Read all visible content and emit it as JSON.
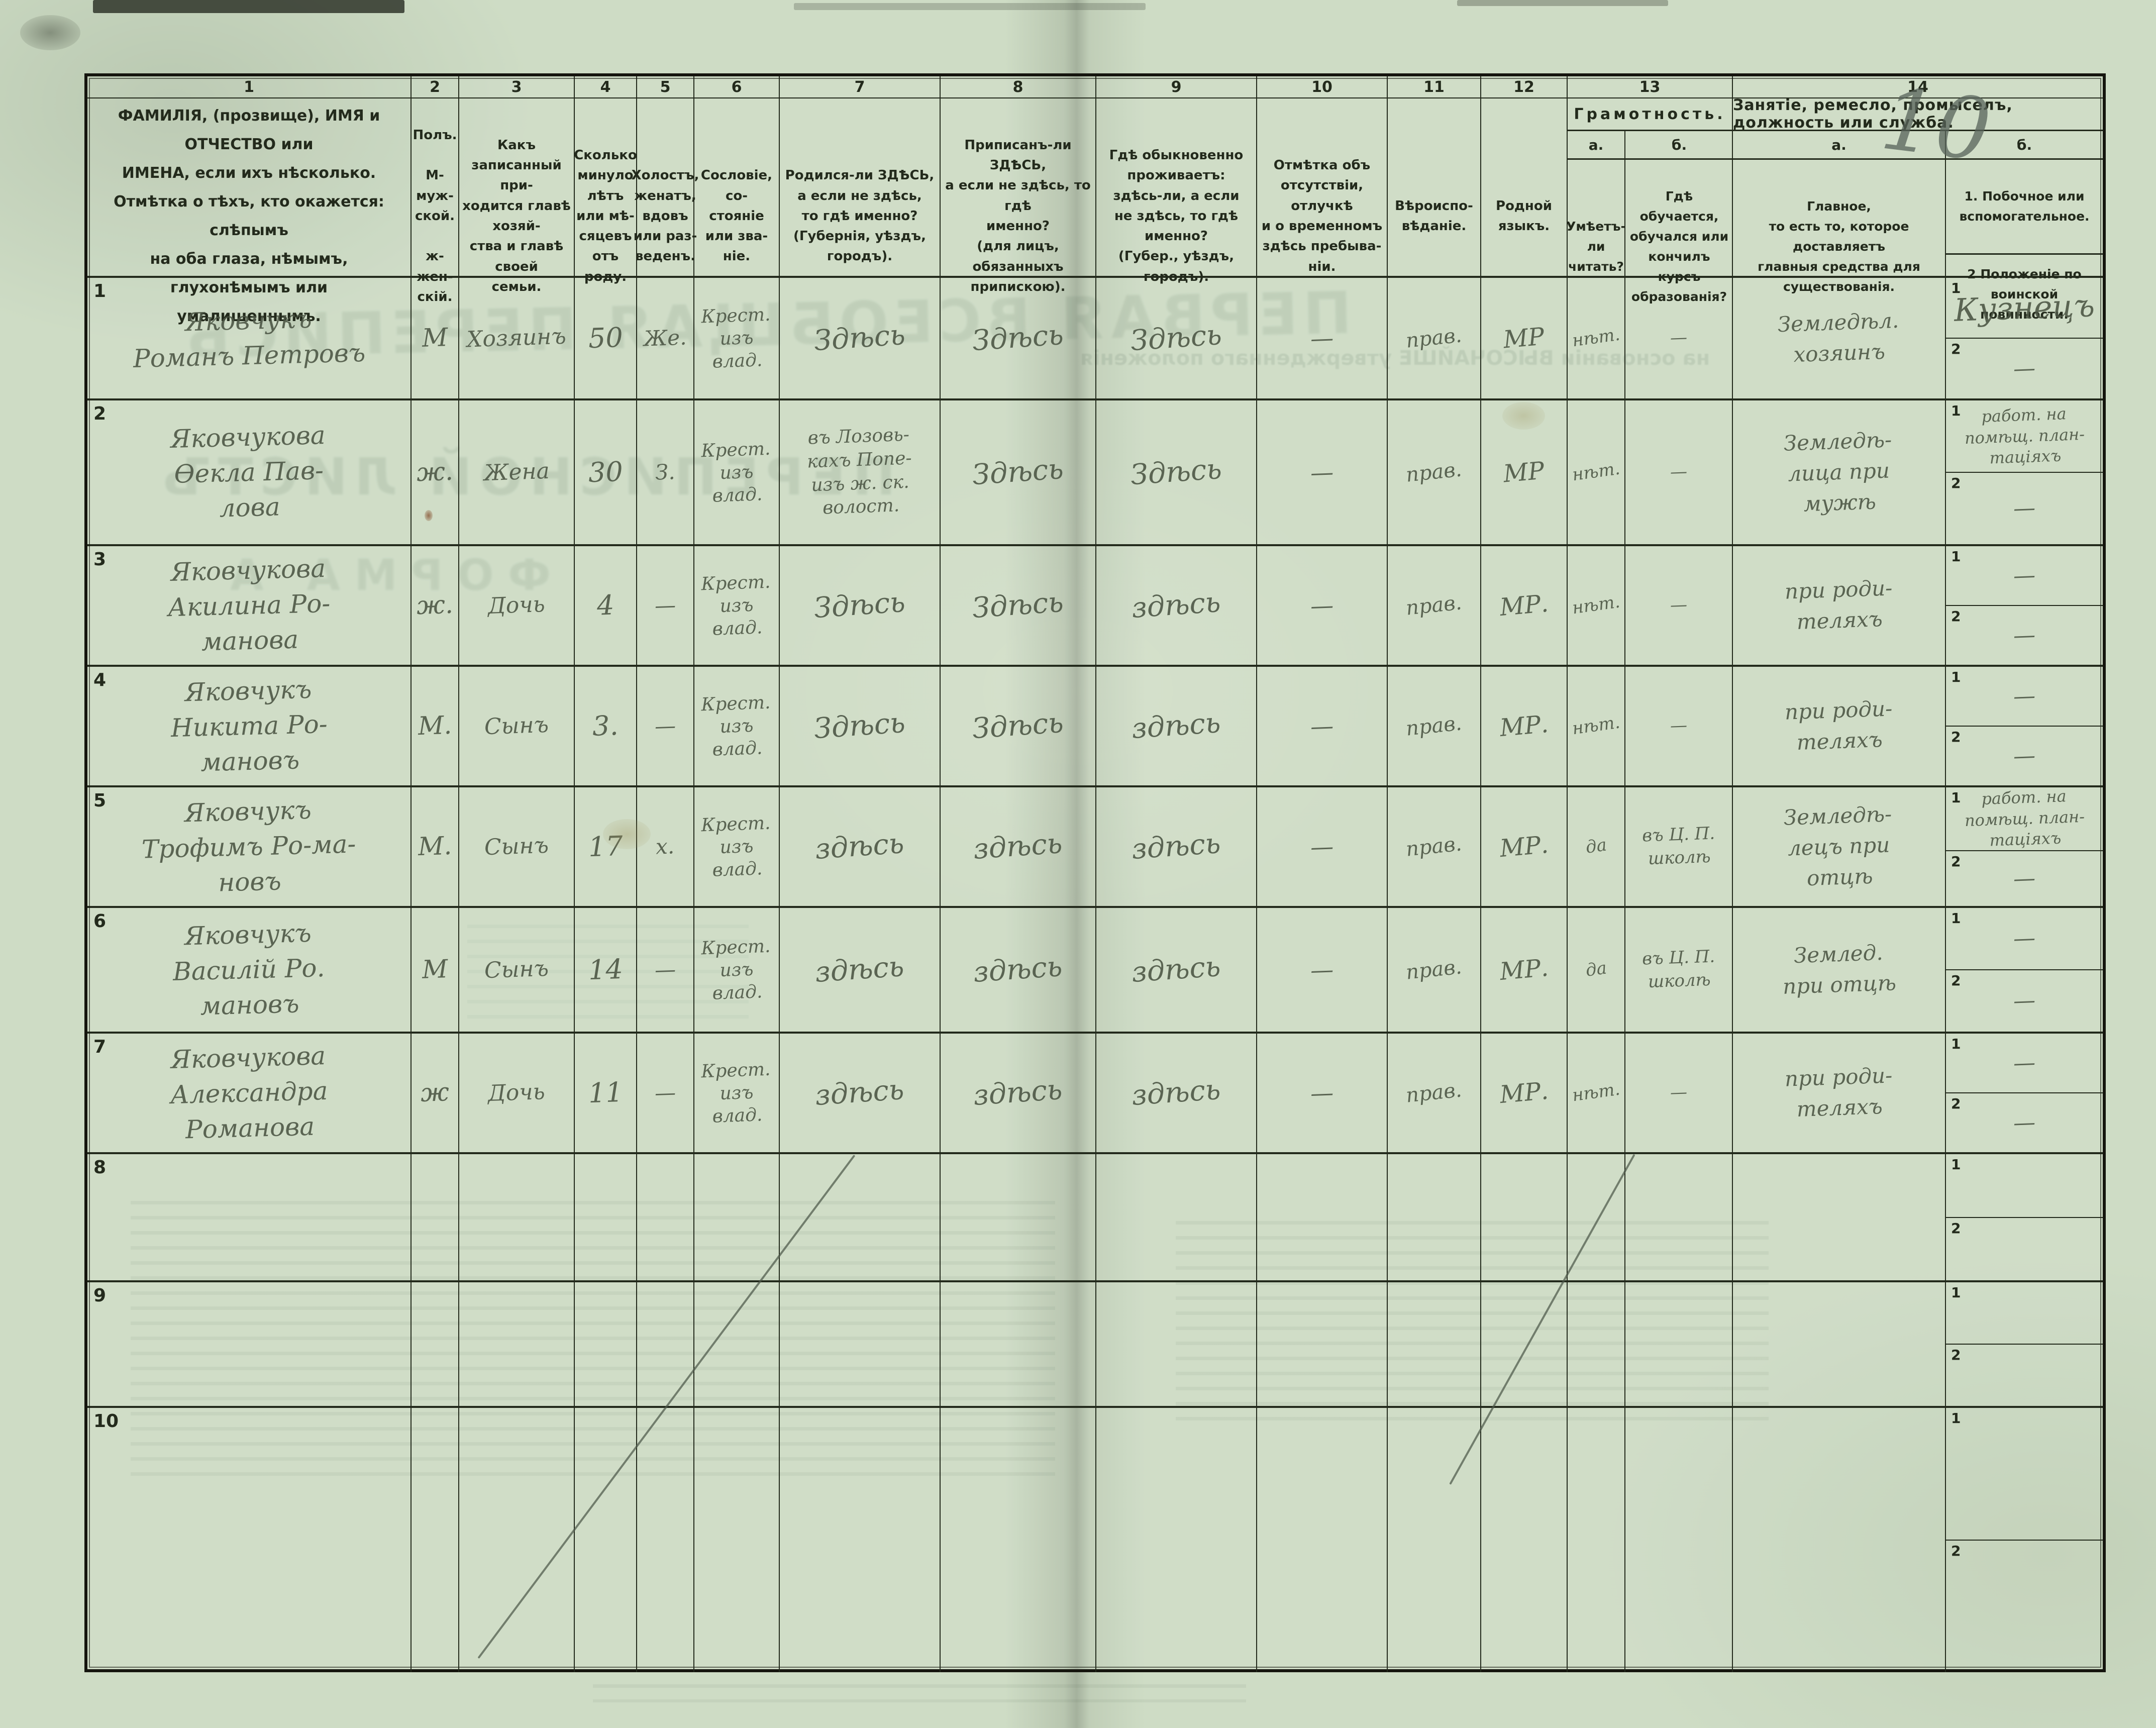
{
  "pencil_page_number": "10",
  "sub_labels": [
    "1",
    "2"
  ],
  "header": {
    "numbers": [
      "1",
      "2",
      "3",
      "4",
      "5",
      "6",
      "7",
      "8",
      "9",
      "10",
      "11",
      "12",
      "13",
      "14"
    ],
    "c1": "ФАМИЛІЯ, (прозвище), ИМЯ и ОТЧЕСТВО или\nИМЕНА, если ихъ нѣсколько.\nОтмѣтка о тѣхъ, кто окажется: слѣпымъ\nна оба глаза, нѣмымъ, глухонѣмымъ или\nумалишеннымъ.",
    "c2": "Полъ.\n\nМ-муж-\nской.\n\nж-жен-\nскій.",
    "c3": "Какъ записанный при-\nходится главѣ хозяй-\nства и главѣ своей\nсемьи.",
    "c4": "Сколько\nминуло\nлѣтъ\nили мѣ-\nсяцевъ\nотъ роду.",
    "c5": "Холостъ,\nженатъ,\nвдовъ\nили раз-\nведенъ.",
    "c6": "Сословіе, со-\nстояніе или зва-\nніе.",
    "c7": "Родился-ли ЗДѢСЬ,\nа если не здѣсь,\nто гдѣ именно?\n(Губернія, уѣздъ, городъ).",
    "c8": "Приписанъ-ли ЗДѢСЬ,\nа если не здѣсь, то гдѣ\nименно?\n(для лицъ, обязанныхъ\nприпискою).",
    "c9": "Гдѣ обыкновенно\nпроживаетъ:\nздѣсь-ли, а если\nне здѣсь, то гдѣ\nименно?\n(Губер., уѣздъ, городъ).",
    "c10": "Отмѣтка объ\nотсутствіи, отлучкѣ\nи о временномъ\nздѣсь пребыва-\nніи.",
    "c11": "Вѣроиспо-\nвѣданіе.",
    "c12": "Родной\nязыкъ.",
    "c13_title": "Грамотность.",
    "c13a_label": "а.",
    "c13b_label": "б.",
    "c13a": "Умѣетъ-\nли\nчитать?",
    "c13b": "Гдѣ обучается,\nобучался или\nкончилъ курсъ\nобразованія?",
    "c14_title": "Занятіе, ремесло, промыселъ, должность или служба.",
    "c14a_label": "а.",
    "c14b_label": "б.",
    "c14a": "Главное,\nто есть то, которое доставляетъ\nглавныя средства для существованія.",
    "c14b_1": "1.  Побочное или вспомогательное.",
    "c14b_2": "2  Положеніе по воинской повинности."
  },
  "bleed_through": {
    "big_title": "ПЕРВАЯ ВСЕОБЩАЯ ПЕРЕПИСЬ",
    "list_title": "ПЕРЕПИСНОЙ ЛИСТЪ",
    "forma": "ФОРМА А",
    "line": "на основаніи ВЫСОЧАЙШЕ утвержденнаго положенія"
  },
  "rows": [
    {
      "num": "1",
      "name": "Яковчукъ\nРоманъ Петровъ",
      "sex": "М",
      "relation": "Хозяинъ",
      "age": "50",
      "marital": "Же.",
      "estate": "Крест.\nизъ\nвлад.",
      "born": "Здѣсь",
      "registered": "Здѣсь",
      "resides": "Здѣсь",
      "absence": "—",
      "religion": "прав.",
      "language": "МР",
      "lit_read": "нѣт.",
      "lit_school": "—",
      "occ_main": "Земледѣл.\nхозяинъ",
      "side": "Кузнецъ",
      "military": "—"
    },
    {
      "num": "2",
      "name": "Яковчукова\nѲекла Пав-\nлова",
      "sex": "ж.",
      "relation": "Жена",
      "age": "30",
      "marital": "З.",
      "estate": "Крест.\nизъ\nвлад.",
      "born": "въ Лозовь-\nкахъ Попе-\nизъ ж. ск.\nволост.",
      "registered": "Здѣсь",
      "resides": "Здѣсь",
      "absence": "—",
      "religion": "прав.",
      "language": "МР",
      "lit_read": "нѣт.",
      "lit_school": "—",
      "occ_main": "Земледѣ-\nлица при\nмужѣ",
      "side": "работ. на\nпомѣщ. план-\nтаціяхъ",
      "military": "—"
    },
    {
      "num": "3",
      "name": "Яковчукова\nАкилина Ро-\nманова",
      "sex": "ж.",
      "relation": "Дочь",
      "age": "4",
      "marital": "—",
      "estate": "Крест.\nизъ\nвлад.",
      "born": "Здѣсь",
      "registered": "Здѣсь",
      "resides": "здѣсь",
      "absence": "—",
      "religion": "прав.",
      "language": "МР.",
      "lit_read": "нѣт.",
      "lit_school": "—",
      "occ_main": "при роди-\nтеляхъ",
      "side": "—",
      "military": "—"
    },
    {
      "num": "4",
      "name": "Яковчукъ\nНикита Ро-\nмановъ",
      "sex": "М.",
      "relation": "Сынъ",
      "age": "3.",
      "marital": "—",
      "estate": "Крест.\nизъ\nвлад.",
      "born": "Здѣсь",
      "registered": "Здѣсь",
      "resides": "здѣсь",
      "absence": "—",
      "religion": "прав.",
      "language": "МР.",
      "lit_read": "нѣт.",
      "lit_school": "—",
      "occ_main": "при роди-\nтеляхъ",
      "side": "—",
      "military": "—"
    },
    {
      "num": "5",
      "name": "Яковчукъ\nТрофимъ Ро-ма-\nновъ",
      "sex": "М.",
      "relation": "Сынъ",
      "age": "17",
      "marital": "х.",
      "estate": "Крест.\nизъ\nвлад.",
      "born": "здѣсь",
      "registered": "здѣсь",
      "resides": "здѣсь",
      "absence": "—",
      "religion": "прав.",
      "language": "МР.",
      "lit_read": "да",
      "lit_school": "въ Ц. П.\nшколѣ",
      "occ_main": "Земледѣ-\nлецъ при\nотцѣ",
      "side": "работ. на\nпомѣщ. план-\nтаціяхъ",
      "military": "—"
    },
    {
      "num": "6",
      "name": "Яковчукъ\nВасилій Ро.\nмановъ",
      "sex": "М",
      "relation": "Сынъ",
      "age": "14",
      "marital": "—",
      "estate": "Крест.\nизъ\nвлад.",
      "born": "здѣсь",
      "registered": "здѣсь",
      "resides": "здѣсь",
      "absence": "—",
      "religion": "прав.",
      "language": "МР.",
      "lit_read": "да",
      "lit_school": "въ Ц. П.\nшколѣ",
      "occ_main": "Землед.\nпри отцѣ",
      "side": "—",
      "military": "—"
    },
    {
      "num": "7",
      "name": "Яковчукова\nАлександра\nРоманова",
      "sex": "ж",
      "relation": "Дочь",
      "age": "11",
      "marital": "—",
      "estate": "Крест.\nизъ\nвлад.",
      "born": "здѣсь",
      "registered": "здѣсь",
      "resides": "здѣсь",
      "absence": "—",
      "religion": "прав.",
      "language": "МР.",
      "lit_read": "нѣт.",
      "lit_school": "—",
      "occ_main": "при роди-\nтеляхъ",
      "side": "—",
      "military": "—"
    },
    {
      "num": "8",
      "name": "",
      "sex": "",
      "relation": "",
      "age": "",
      "marital": "",
      "estate": "",
      "born": "",
      "registered": "",
      "resides": "",
      "absence": "",
      "religion": "",
      "language": "",
      "lit_read": "",
      "lit_school": "",
      "occ_main": "",
      "side": "",
      "military": ""
    },
    {
      "num": "9",
      "name": "",
      "sex": "",
      "relation": "",
      "age": "",
      "marital": "",
      "estate": "",
      "born": "",
      "registered": "",
      "resides": "",
      "absence": "",
      "religion": "",
      "language": "",
      "lit_read": "",
      "lit_school": "",
      "occ_main": "",
      "side": "",
      "military": ""
    },
    {
      "num": "10",
      "name": "",
      "sex": "",
      "relation": "",
      "age": "",
      "marital": "",
      "estate": "",
      "born": "",
      "registered": "",
      "resides": "",
      "absence": "",
      "religion": "",
      "language": "",
      "lit_read": "",
      "lit_school": "",
      "occ_main": "",
      "side": "",
      "military": ""
    }
  ]
}
